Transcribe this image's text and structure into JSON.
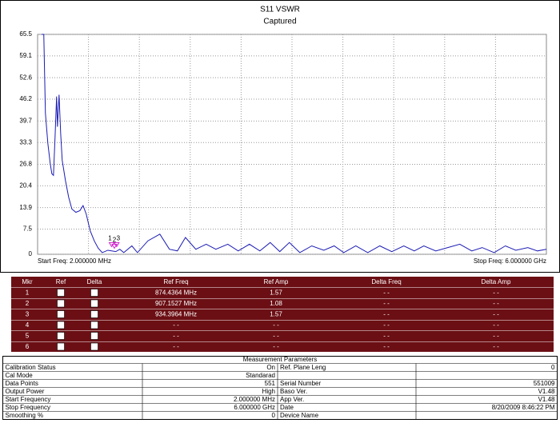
{
  "chart_data": {
    "type": "line",
    "title": "S11 VSWR",
    "subtitle": "Captured",
    "x_start_label": "Start Freq: 2.000000 MHz",
    "x_stop_label": "Stop Freq: 6.000000 GHz",
    "xlim": [
      2,
      6000
    ],
    "ylim": [
      0,
      65.5
    ],
    "yticks": [
      0,
      7.5,
      13.9,
      20.4,
      26.8,
      33.3,
      39.7,
      46.2,
      52.6,
      59.1,
      65.5
    ],
    "grid": true,
    "color": "#1c1cb4",
    "x": [
      49,
      75,
      94,
      123,
      151,
      170,
      189,
      208,
      226,
      236,
      255,
      274,
      292,
      330,
      368,
      406,
      453,
      500,
      538,
      575,
      622,
      670,
      717,
      764,
      830,
      924,
      971,
      1018,
      1113,
      1179,
      1302,
      1443,
      1556,
      1650,
      1745,
      1867,
      1990,
      2103,
      2244,
      2367,
      2499,
      2622,
      2744,
      2857,
      2970,
      3093,
      3234,
      3376,
      3498,
      3611,
      3753,
      3894,
      4036,
      4177,
      4319,
      4442,
      4555,
      4696,
      4837,
      4979,
      5120,
      5243,
      5384,
      5516,
      5639,
      5781,
      5894,
      6000
    ],
    "values": [
      65.5,
      65.5,
      42,
      33,
      27,
      24,
      23.5,
      35,
      47,
      38,
      47.5,
      36,
      28,
      22,
      17,
      13.5,
      12.5,
      13,
      14.5,
      12,
      7,
      4,
      1.8,
      0.5,
      1.2,
      0.8,
      1.5,
      0.5,
      2.5,
      0.5,
      4,
      6,
      1.5,
      1,
      5,
      1.5,
      3,
      1.5,
      3,
      1,
      3,
      1,
      3.5,
      0.8,
      3.5,
      0.5,
      2.5,
      1.2,
      2.5,
      0.5,
      2.5,
      0.5,
      2.5,
      0.8,
      2.5,
      1,
      2.5,
      1,
      2,
      3,
      1,
      2,
      0.5,
      2.5,
      1.2,
      2,
      1,
      1.5
    ],
    "markers": {
      "color": "#d020d0",
      "x": [
        874.4364,
        907.1527,
        934.3964
      ],
      "values": [
        1.57,
        1.08,
        1.57
      ]
    }
  },
  "marker_table": {
    "header": [
      "Mkr",
      "Ref",
      "Delta",
      "Ref Freq",
      "Ref Amp",
      "Delta Freq",
      "Delta Amp"
    ],
    "rows": [
      [
        "1",
        "874.4364 MHz",
        "1.57",
        "- -",
        "- -"
      ],
      [
        "2",
        "907.1527 MHz",
        "1.08",
        "- -",
        "- -"
      ],
      [
        "3",
        "934.3964 MHz",
        "1.57",
        "- -",
        "- -"
      ],
      [
        "4",
        "- -",
        "- -",
        "- -",
        "- -"
      ],
      [
        "5",
        "- -",
        "- -",
        "- -",
        "- -"
      ],
      [
        "6",
        "- -",
        "- -",
        "- -",
        "- -"
      ]
    ]
  },
  "parameters": {
    "title": "Measurement Parameters",
    "rows": [
      [
        "Calibration Status",
        "On",
        "Ref. Plane Leng",
        "0"
      ],
      [
        "Cal Mode",
        "Standarad",
        null,
        null
      ],
      [
        "Data Points",
        "551",
        "Serial Number",
        "551009"
      ],
      [
        "Output Power",
        "High",
        "Baso Ver.",
        "V1.48"
      ],
      [
        "Start Frequency",
        "2.000000 MHz",
        "App Ver.",
        "V1.48"
      ],
      [
        "Stop Frequency",
        "6.000000 GHz",
        "Date",
        "8/20/2009 8:46:22 PM"
      ],
      [
        "Smoothing %",
        "0",
        "Device Name",
        null
      ]
    ]
  }
}
